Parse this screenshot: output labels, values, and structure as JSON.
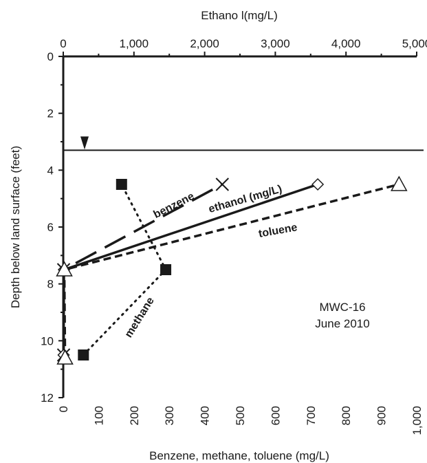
{
  "chart_data": {
    "type": "line",
    "top_axis": {
      "label": "Ethano l(mg/L)",
      "range": [
        0,
        5000
      ],
      "ticks": [
        0,
        1000,
        2000,
        3000,
        4000,
        5000
      ],
      "tick_labels": [
        "0",
        "1,000",
        "2,000",
        "3,000",
        "4,000",
        "5,000"
      ]
    },
    "bottom_axis": {
      "label": "Benzene, methane, toluene (mg/L)",
      "range": [
        0,
        1000
      ],
      "ticks": [
        0,
        100,
        200,
        300,
        400,
        500,
        600,
        700,
        800,
        900,
        1000
      ],
      "tick_labels": [
        "0",
        "100",
        "200",
        "300",
        "400",
        "500",
        "600",
        "700",
        "800",
        "900",
        "1,000"
      ]
    },
    "y_axis": {
      "label": "Depth below land surface (feet)",
      "range": [
        0,
        12
      ],
      "inverted": true,
      "ticks": [
        0,
        2,
        4,
        6,
        8,
        10,
        12
      ],
      "tick_labels": [
        "0",
        "2",
        "4",
        "6",
        "8",
        "10",
        "12"
      ]
    },
    "water_table_depth": 3.3,
    "series": [
      {
        "name": "benzene",
        "axis": "bottom",
        "marker": "x",
        "line": "long-dash",
        "points": [
          {
            "x": 1,
            "depth": 10.5
          },
          {
            "x": 1,
            "depth": 7.5
          },
          {
            "x": 450,
            "depth": 4.5
          }
        ]
      },
      {
        "name": "ethanol (mg/L)",
        "axis": "top",
        "marker": "diamond",
        "line": "solid",
        "points": [
          {
            "x": 5,
            "depth": 10.5
          },
          {
            "x": 10,
            "depth": 7.5
          },
          {
            "x": 3600,
            "depth": 4.5
          }
        ]
      },
      {
        "name": "toluene",
        "axis": "bottom",
        "marker": "triangle",
        "line": "short-dash",
        "points": [
          {
            "x": 5,
            "depth": 10.6
          },
          {
            "x": 3,
            "depth": 7.5
          },
          {
            "x": 950,
            "depth": 4.5
          }
        ]
      },
      {
        "name": "methane",
        "axis": "bottom",
        "marker": "square",
        "line": "dotted",
        "points": [
          {
            "x": 57,
            "depth": 10.5
          },
          {
            "x": 290,
            "depth": 7.5
          },
          {
            "x": 165,
            "depth": 4.5
          }
        ]
      }
    ],
    "annotation": {
      "line1": "MWC-16",
      "line2": "June 2010"
    }
  }
}
